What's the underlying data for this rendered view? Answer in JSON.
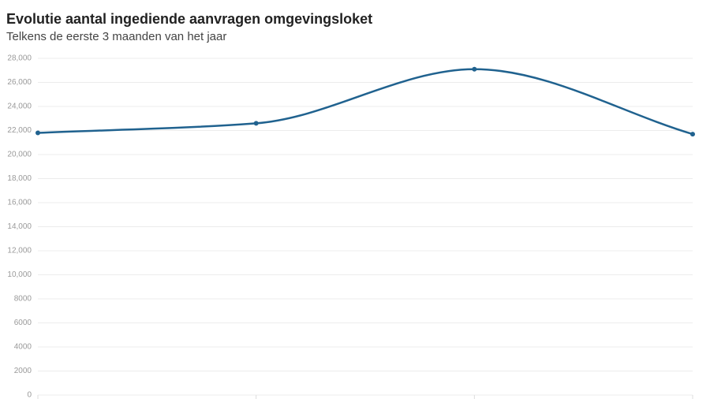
{
  "chart_data": {
    "type": "line",
    "title": "Evolutie aantal ingediende aanvragen omgevingsloket",
    "subtitle": "Telkens de eerste 3 maanden van het jaar",
    "categories": [
      null,
      null,
      null,
      null
    ],
    "series": [
      {
        "color": "#20628f",
        "values": [
          21800,
          22600,
          27100,
          21700
        ]
      }
    ],
    "ylim": [
      0,
      28000
    ],
    "yticks": [
      0,
      2000,
      4000,
      6000,
      8000,
      {
        "value": 10000,
        "label": "10,000"
      },
      {
        "value": 12000,
        "label": "12,000"
      },
      {
        "value": 14000,
        "label": "14,000"
      },
      {
        "value": 16000,
        "label": "16,000"
      },
      {
        "value": 18000,
        "label": "18,000"
      },
      {
        "value": 20000,
        "label": "20,000"
      },
      {
        "value": 22000,
        "label": "22,000"
      },
      {
        "value": 24000,
        "label": "24,000"
      },
      {
        "value": 26000,
        "label": "26,000"
      },
      {
        "value": 28000,
        "label": "28,000"
      }
    ],
    "grid": true
  }
}
